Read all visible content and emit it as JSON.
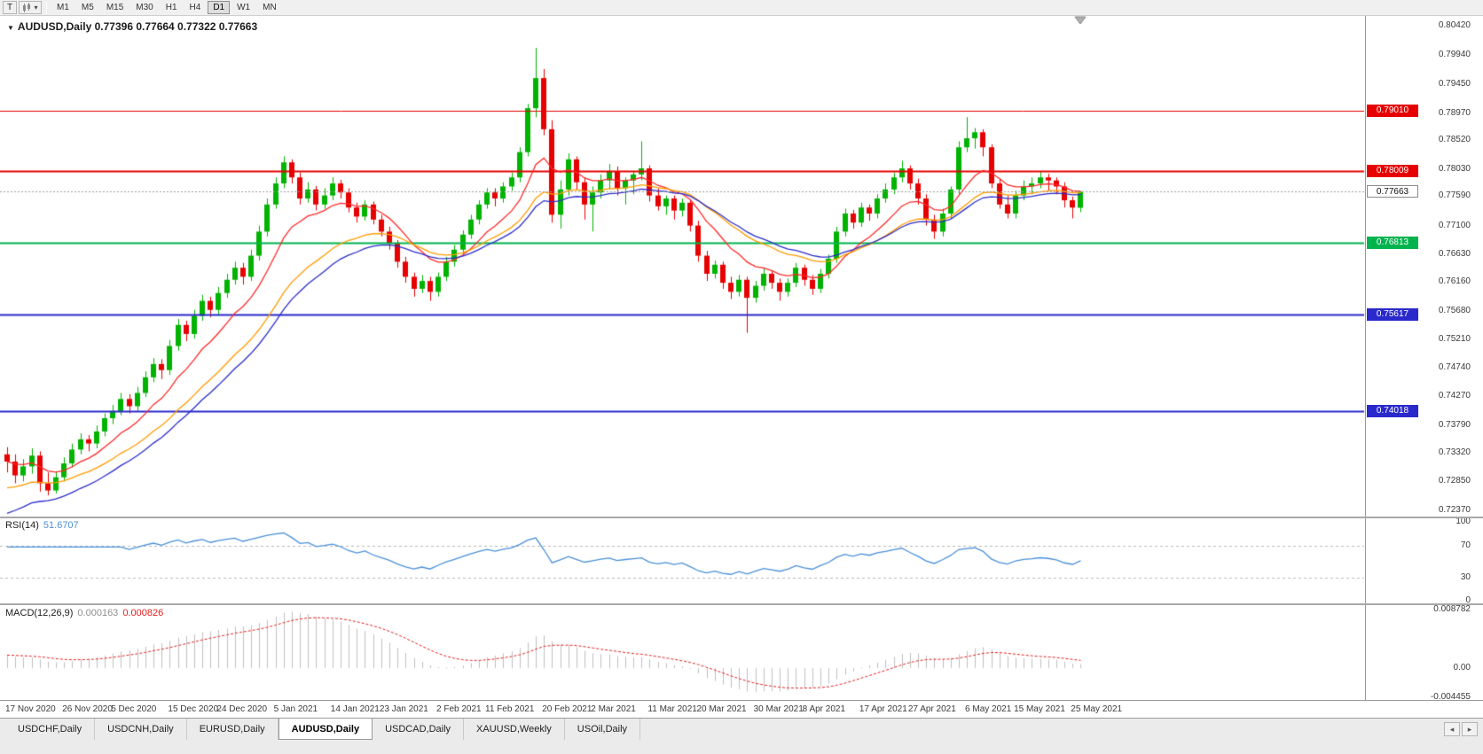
{
  "icons": {
    "caret_down": "▾",
    "chart_menu": "▼",
    "tab_scroll_left": "◂",
    "tab_scroll_right": "▸"
  },
  "toolbar": {
    "t_button": "T",
    "timeframes": [
      "M1",
      "M5",
      "M15",
      "M30",
      "H1",
      "H4",
      "D1",
      "W1",
      "MN"
    ],
    "active_timeframe": "D1"
  },
  "main_chart": {
    "title_symbol": "AUDUSD,Daily",
    "title_ohlc": "0.77396 0.77664 0.77322 0.77663"
  },
  "rsi_panel": {
    "label": "RSI(14)",
    "value": "51.6707"
  },
  "macd_panel": {
    "label": "MACD(12,26,9)",
    "value_main": "0.000163",
    "value_signal": "0.000826"
  },
  "tabs": {
    "items": [
      "USDCHF,Daily",
      "USDCNH,Daily",
      "EURUSD,Daily",
      "AUDUSD,Daily",
      "USDCAD,Daily",
      "XAUUSD,Weekly",
      "USOil,Daily"
    ],
    "active": "AUDUSD,Daily"
  },
  "chart_data": {
    "type": "candlestick",
    "symbol": "AUDUSD",
    "period": "Daily",
    "ohlc_display": {
      "open": "0.77396",
      "high": "0.77664",
      "low": "0.77322",
      "close": "0.77663"
    },
    "colors": {
      "up": "#00b300",
      "down": "#e60000",
      "ma_fast": "#ff2a2a",
      "ma_mid": "#ff9c00",
      "ma_slow": "#2d2dcc",
      "rsi": "#4a90d9",
      "macd_hist": "#c0c0c0",
      "macd_signal": "#e62020",
      "grid": "#b8b8b8",
      "current_line": "#9a9a9a"
    },
    "y_axis_ticks": [
      "0.80420",
      "0.79940",
      "0.79450",
      "0.78970",
      "0.78520",
      "0.78030",
      "0.77590",
      "0.77100",
      "0.76630",
      "0.76160",
      "0.75680",
      "0.75210",
      "0.74740",
      "0.74270",
      "0.73790",
      "0.73320",
      "0.72850",
      "0.72370"
    ],
    "price_range": {
      "top": 0.80582,
      "bottom": 0.72267
    },
    "levels": [
      {
        "price": 0.7901,
        "label": "0.79010",
        "color": "#e60000",
        "width": 1
      },
      {
        "price": 0.78009,
        "label": "0.78009",
        "color": "#e60000",
        "width": 2
      },
      {
        "price": 0.76813,
        "label": "0.76813",
        "color": "#00b34d",
        "width": 2
      },
      {
        "price": 0.75617,
        "label": "0.75617",
        "color": "#2929cc",
        "width": 2
      },
      {
        "price": 0.74018,
        "label": "0.74018",
        "color": "#2929cc",
        "width": 2
      }
    ],
    "current_price": {
      "price": 0.77663,
      "label": "0.77663"
    },
    "x_labels": [
      [
        "17 Nov 2020",
        0
      ],
      [
        "26 Nov 2020",
        7
      ],
      [
        "5 Dec 2020",
        13
      ],
      [
        "15 Dec 2020",
        20
      ],
      [
        "24 Dec 2020",
        26
      ],
      [
        "5 Jan 2021",
        33
      ],
      [
        "14 Jan 2021",
        40
      ],
      [
        "23 Jan 2021",
        46
      ],
      [
        "2 Feb 2021",
        53
      ],
      [
        "11 Feb 2021",
        59
      ],
      [
        "20 Feb 2021",
        66
      ],
      [
        "2 Mar 2021",
        72
      ],
      [
        "11 Mar 2021",
        79
      ],
      [
        "20 Mar 2021",
        85
      ],
      [
        "30 Mar 2021",
        92
      ],
      [
        "8 Apr 2021",
        98
      ],
      [
        "17 Apr 2021",
        105
      ],
      [
        "27 Apr 2021",
        111
      ],
      [
        "6 May 2021",
        118
      ],
      [
        "15 May 2021",
        124
      ],
      [
        "25 May 2021",
        131
      ]
    ],
    "moving_averages": [
      {
        "period": 10,
        "seed": null,
        "color_key": "ma_fast"
      },
      {
        "period": 21,
        "seed": 0.727,
        "color_key": "ma_mid"
      },
      {
        "period": 25,
        "seed": 0.7225,
        "color_key": "ma_slow"
      }
    ],
    "rsi": {
      "period": 14,
      "guides": [
        70,
        30
      ],
      "axis_ticks": [
        100,
        70,
        30,
        0
      ],
      "range": [
        105,
        -3
      ]
    },
    "macd": {
      "fast": 12,
      "slow": 26,
      "signal": 9,
      "axis_ticks": [
        [
          "0.008782",
          0.008782
        ],
        [
          "0.00",
          0
        ],
        [
          "-0.004455",
          -0.004455
        ]
      ],
      "range": [
        0.0095,
        -0.0048
      ],
      "pos_peak": 0.0085,
      "neg_trough": -0.0036
    },
    "candles": [
      [
        0.733,
        0.7342,
        0.73,
        0.7318
      ],
      [
        0.7318,
        0.733,
        0.7282,
        0.7295
      ],
      [
        0.7295,
        0.7322,
        0.7285,
        0.731
      ],
      [
        0.731,
        0.734,
        0.7298,
        0.7328
      ],
      [
        0.7328,
        0.7335,
        0.7268,
        0.7282
      ],
      [
        0.7282,
        0.73,
        0.7262,
        0.727
      ],
      [
        0.727,
        0.7302,
        0.7265,
        0.7292
      ],
      [
        0.7292,
        0.7325,
        0.7285,
        0.7315
      ],
      [
        0.7315,
        0.7348,
        0.7308,
        0.7338
      ],
      [
        0.7338,
        0.7365,
        0.733,
        0.7355
      ],
      [
        0.7355,
        0.7362,
        0.7335,
        0.7348
      ],
      [
        0.7348,
        0.7378,
        0.734,
        0.7368
      ],
      [
        0.7368,
        0.7398,
        0.736,
        0.739
      ],
      [
        0.739,
        0.7412,
        0.738,
        0.7402
      ],
      [
        0.7402,
        0.7432,
        0.7395,
        0.7422
      ],
      [
        0.7422,
        0.743,
        0.7398,
        0.741
      ],
      [
        0.741,
        0.7442,
        0.7402,
        0.7432
      ],
      [
        0.7432,
        0.7468,
        0.7425,
        0.7458
      ],
      [
        0.7458,
        0.749,
        0.745,
        0.748
      ],
      [
        0.748,
        0.7488,
        0.7455,
        0.747
      ],
      [
        0.747,
        0.752,
        0.7462,
        0.751
      ],
      [
        0.751,
        0.7555,
        0.7502,
        0.7545
      ],
      [
        0.7545,
        0.7552,
        0.7518,
        0.753
      ],
      [
        0.753,
        0.757,
        0.7522,
        0.756
      ],
      [
        0.756,
        0.7595,
        0.7552,
        0.7585
      ],
      [
        0.7585,
        0.7592,
        0.7558,
        0.757
      ],
      [
        0.757,
        0.7608,
        0.7562,
        0.7598
      ],
      [
        0.7598,
        0.763,
        0.759,
        0.762
      ],
      [
        0.762,
        0.765,
        0.7612,
        0.764
      ],
      [
        0.764,
        0.7648,
        0.7612,
        0.7625
      ],
      [
        0.7625,
        0.767,
        0.7618,
        0.766
      ],
      [
        0.766,
        0.771,
        0.7652,
        0.77
      ],
      [
        0.77,
        0.7755,
        0.7692,
        0.7745
      ],
      [
        0.7745,
        0.779,
        0.7738,
        0.778
      ],
      [
        0.778,
        0.7825,
        0.7772,
        0.7815
      ],
      [
        0.7815,
        0.782,
        0.778,
        0.779
      ],
      [
        0.779,
        0.7798,
        0.7745,
        0.7755
      ],
      [
        0.7755,
        0.7782,
        0.7748,
        0.777
      ],
      [
        0.777,
        0.7776,
        0.7735,
        0.7745
      ],
      [
        0.7745,
        0.7772,
        0.7738,
        0.776
      ],
      [
        0.776,
        0.779,
        0.7752,
        0.778
      ],
      [
        0.778,
        0.7786,
        0.7755,
        0.7765
      ],
      [
        0.7765,
        0.7772,
        0.7732,
        0.774
      ],
      [
        0.774,
        0.7748,
        0.7715,
        0.7725
      ],
      [
        0.7725,
        0.7752,
        0.7718,
        0.7745
      ],
      [
        0.7745,
        0.775,
        0.7712,
        0.772
      ],
      [
        0.772,
        0.7728,
        0.7692,
        0.77
      ],
      [
        0.77,
        0.7708,
        0.767,
        0.768
      ],
      [
        0.768,
        0.7686,
        0.764,
        0.765
      ],
      [
        0.765,
        0.7658,
        0.7615,
        0.7625
      ],
      [
        0.7625,
        0.7632,
        0.7592,
        0.7605
      ],
      [
        0.7605,
        0.7628,
        0.7598,
        0.7618
      ],
      [
        0.7618,
        0.7625,
        0.7585,
        0.76
      ],
      [
        0.76,
        0.7632,
        0.7592,
        0.7625
      ],
      [
        0.7625,
        0.7658,
        0.7618,
        0.765
      ],
      [
        0.765,
        0.7678,
        0.7642,
        0.767
      ],
      [
        0.767,
        0.7702,
        0.7662,
        0.7695
      ],
      [
        0.7695,
        0.7728,
        0.7688,
        0.772
      ],
      [
        0.772,
        0.7752,
        0.7712,
        0.7745
      ],
      [
        0.7745,
        0.7772,
        0.7738,
        0.7765
      ],
      [
        0.7765,
        0.7772,
        0.7742,
        0.7755
      ],
      [
        0.7755,
        0.7782,
        0.7748,
        0.7775
      ],
      [
        0.7775,
        0.7798,
        0.7768,
        0.779
      ],
      [
        0.779,
        0.784,
        0.7782,
        0.7832
      ],
      [
        0.7832,
        0.7912,
        0.7825,
        0.7905
      ],
      [
        0.7905,
        0.8005,
        0.789,
        0.7955
      ],
      [
        0.7955,
        0.797,
        0.786,
        0.787
      ],
      [
        0.787,
        0.7885,
        0.7715,
        0.7728
      ],
      [
        0.7728,
        0.7785,
        0.7705,
        0.777
      ],
      [
        0.777,
        0.783,
        0.776,
        0.782
      ],
      [
        0.782,
        0.7825,
        0.777,
        0.7782
      ],
      [
        0.7782,
        0.779,
        0.772,
        0.7745
      ],
      [
        0.7745,
        0.7775,
        0.77,
        0.7765
      ],
      [
        0.7765,
        0.7795,
        0.7755,
        0.7785
      ],
      [
        0.7785,
        0.7812,
        0.777,
        0.78
      ],
      [
        0.78,
        0.7808,
        0.776,
        0.7772
      ],
      [
        0.7772,
        0.779,
        0.7745,
        0.7785
      ],
      [
        0.7785,
        0.78,
        0.7762,
        0.7795
      ],
      [
        0.7795,
        0.785,
        0.7785,
        0.7805
      ],
      [
        0.7805,
        0.781,
        0.775,
        0.776
      ],
      [
        0.776,
        0.7772,
        0.7735,
        0.7742
      ],
      [
        0.7742,
        0.776,
        0.7728,
        0.7755
      ],
      [
        0.7755,
        0.776,
        0.772,
        0.7735
      ],
      [
        0.7735,
        0.7755,
        0.7725,
        0.7748
      ],
      [
        0.7748,
        0.7752,
        0.77,
        0.771
      ],
      [
        0.771,
        0.7718,
        0.765,
        0.766
      ],
      [
        0.766,
        0.7668,
        0.7618,
        0.763
      ],
      [
        0.763,
        0.7652,
        0.7622,
        0.7645
      ],
      [
        0.7645,
        0.765,
        0.7605,
        0.7615
      ],
      [
        0.7615,
        0.7625,
        0.7588,
        0.76
      ],
      [
        0.76,
        0.7628,
        0.7592,
        0.762
      ],
      [
        0.762,
        0.7625,
        0.7532,
        0.759
      ],
      [
        0.759,
        0.7618,
        0.7582,
        0.761
      ],
      [
        0.761,
        0.764,
        0.7602,
        0.763
      ],
      [
        0.763,
        0.7636,
        0.7605,
        0.7615
      ],
      [
        0.7615,
        0.7622,
        0.7585,
        0.76
      ],
      [
        0.76,
        0.7622,
        0.7592,
        0.7615
      ],
      [
        0.7615,
        0.7648,
        0.7608,
        0.764
      ],
      [
        0.764,
        0.7645,
        0.761,
        0.762
      ],
      [
        0.762,
        0.7628,
        0.7595,
        0.7605
      ],
      [
        0.7605,
        0.7638,
        0.7598,
        0.763
      ],
      [
        0.763,
        0.7662,
        0.7622,
        0.7655
      ],
      [
        0.7655,
        0.7708,
        0.7648,
        0.77
      ],
      [
        0.77,
        0.7738,
        0.7692,
        0.773
      ],
      [
        0.773,
        0.7736,
        0.7705,
        0.7715
      ],
      [
        0.7715,
        0.7748,
        0.7708,
        0.774
      ],
      [
        0.774,
        0.7745,
        0.7718,
        0.773
      ],
      [
        0.773,
        0.7762,
        0.7722,
        0.7755
      ],
      [
        0.7755,
        0.778,
        0.7748,
        0.777
      ],
      [
        0.777,
        0.7798,
        0.7762,
        0.779
      ],
      [
        0.779,
        0.7818,
        0.7782,
        0.7805
      ],
      [
        0.7805,
        0.781,
        0.777,
        0.778
      ],
      [
        0.778,
        0.7788,
        0.7745,
        0.7755
      ],
      [
        0.7755,
        0.7762,
        0.771,
        0.772
      ],
      [
        0.772,
        0.7728,
        0.7688,
        0.77
      ],
      [
        0.77,
        0.7738,
        0.7692,
        0.773
      ],
      [
        0.773,
        0.7775,
        0.7722,
        0.777
      ],
      [
        0.777,
        0.785,
        0.7762,
        0.784
      ],
      [
        0.784,
        0.789,
        0.7832,
        0.7855
      ],
      [
        0.7855,
        0.7872,
        0.7838,
        0.7865
      ],
      [
        0.7865,
        0.787,
        0.7825,
        0.784
      ],
      [
        0.784,
        0.7845,
        0.7772,
        0.778
      ],
      [
        0.778,
        0.7788,
        0.7738,
        0.7745
      ],
      [
        0.7745,
        0.776,
        0.7722,
        0.773
      ],
      [
        0.773,
        0.7768,
        0.7722,
        0.776
      ],
      [
        0.776,
        0.7785,
        0.7752,
        0.7775
      ],
      [
        0.7775,
        0.779,
        0.7762,
        0.778
      ],
      [
        0.778,
        0.78,
        0.7772,
        0.779
      ],
      [
        0.779,
        0.7796,
        0.7768,
        0.7785
      ],
      [
        0.7785,
        0.779,
        0.7762,
        0.7775
      ],
      [
        0.7775,
        0.7782,
        0.774,
        0.7752
      ],
      [
        0.7752,
        0.7758,
        0.7722,
        0.774
      ],
      [
        0.77396,
        0.77664,
        0.77322,
        0.77663
      ]
    ]
  }
}
